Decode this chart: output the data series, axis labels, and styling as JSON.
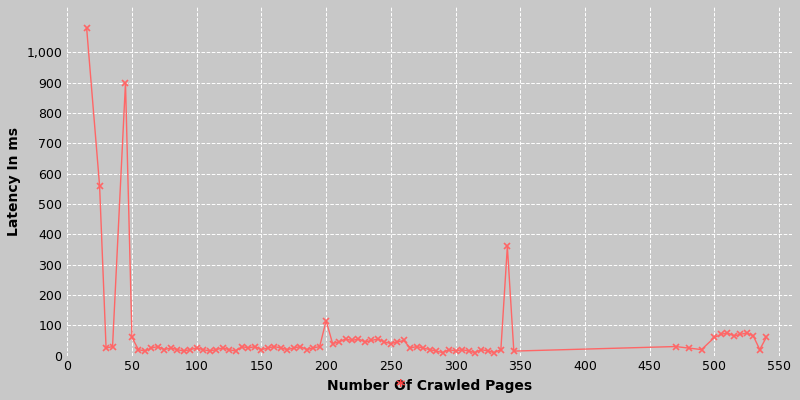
{
  "x": [
    15,
    25,
    30,
    35,
    45,
    50,
    55,
    60,
    65,
    70,
    75,
    80,
    85,
    90,
    95,
    100,
    105,
    110,
    115,
    120,
    125,
    130,
    135,
    140,
    145,
    150,
    155,
    160,
    165,
    170,
    175,
    180,
    185,
    190,
    195,
    200,
    205,
    210,
    215,
    220,
    225,
    230,
    235,
    240,
    245,
    250,
    255,
    260,
    265,
    270,
    275,
    280,
    285,
    290,
    295,
    300,
    305,
    310,
    315,
    320,
    325,
    330,
    335,
    340,
    345,
    470,
    480,
    490,
    500,
    505,
    510,
    515,
    520,
    525,
    530,
    535,
    540
  ],
  "y": [
    1080,
    560,
    25,
    30,
    900,
    60,
    20,
    15,
    25,
    30,
    20,
    25,
    20,
    15,
    20,
    25,
    20,
    15,
    20,
    25,
    20,
    15,
    30,
    25,
    30,
    20,
    25,
    30,
    25,
    20,
    25,
    30,
    20,
    25,
    30,
    115,
    40,
    45,
    55,
    50,
    55,
    45,
    50,
    55,
    45,
    40,
    45,
    50,
    25,
    30,
    25,
    20,
    15,
    10,
    20,
    15,
    20,
    15,
    10,
    20,
    15,
    10,
    20,
    360,
    15,
    30,
    25,
    20,
    60,
    70,
    75,
    65,
    70,
    75,
    65,
    20,
    60
  ],
  "line_color": "#ff6666",
  "marker": "x",
  "marker_color": "#ff6666",
  "marker_size": 5,
  "line_width": 1.0,
  "xlabel": "Number Of Crawled Pages",
  "ylabel": "Latency In ms",
  "xlim": [
    0,
    560
  ],
  "ylim": [
    0,
    1150
  ],
  "xticks": [
    0,
    50,
    100,
    150,
    200,
    250,
    300,
    350,
    400,
    450,
    500,
    550
  ],
  "yticks": [
    0,
    100,
    200,
    300,
    400,
    500,
    600,
    700,
    800,
    900,
    1000
  ],
  "bg_color": "#c8c8c8",
  "fig_color": "#c8c8c8",
  "grid_color": "white",
  "legend_marker": "*",
  "legend_marker_color": "#ff4444"
}
